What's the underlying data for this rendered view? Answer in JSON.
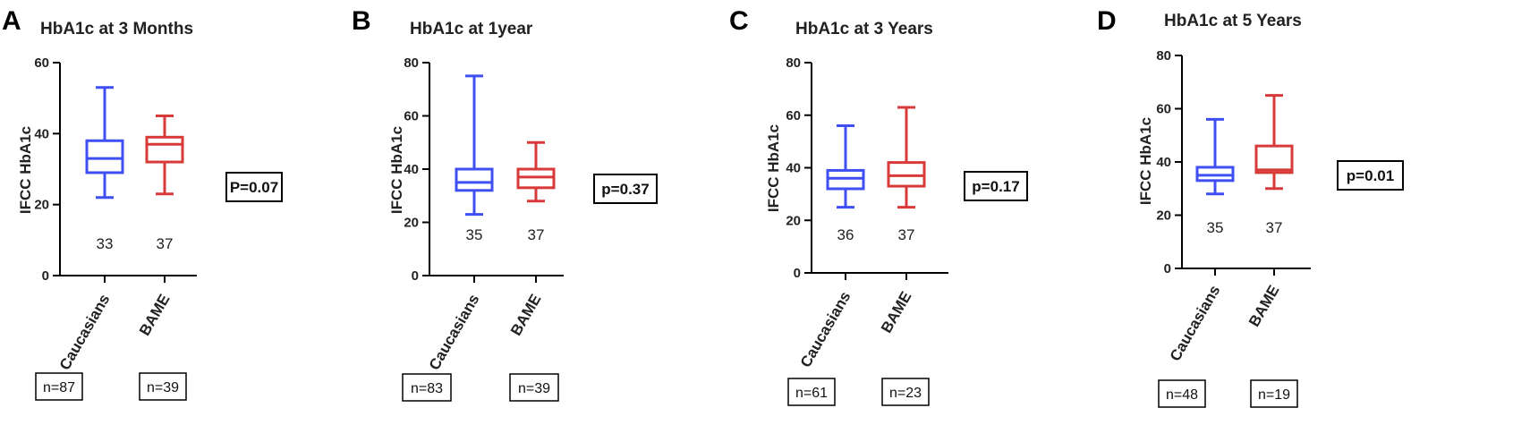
{
  "chart_data": [
    {
      "type": "box",
      "letter": "A",
      "title": "HbA1c at 3 Months",
      "ylabel": "IFCC HbA1c",
      "ylim": [
        0,
        60
      ],
      "yticks": [
        "0",
        "20",
        "40",
        "60"
      ],
      "categories": [
        "Caucasians",
        "BAME"
      ],
      "series": [
        {
          "category": "Caucasians",
          "min": 22,
          "q1": 29,
          "median": 33,
          "q3": 38,
          "max": 53,
          "median_label": "33",
          "n_label": "n=87",
          "color": "#3f4ff2"
        },
        {
          "category": "BAME",
          "min": 23,
          "q1": 32,
          "median": 37,
          "q3": 39,
          "max": 45,
          "median_label": "37",
          "n_label": "n=39",
          "color": "#d83a3a"
        }
      ],
      "p_value": "P=0.07"
    },
    {
      "type": "box",
      "letter": "B",
      "title": "HbA1c at 1year",
      "ylabel": "IFCC HbA1c",
      "ylim": [
        0,
        80
      ],
      "yticks": [
        "0",
        "20",
        "40",
        "60",
        "80"
      ],
      "categories": [
        "Caucasians",
        "BAME"
      ],
      "series": [
        {
          "category": "Caucasians",
          "min": 23,
          "q1": 32,
          "median": 35,
          "q3": 40,
          "max": 75,
          "median_label": "35",
          "n_label": "n=83",
          "color": "#3f4ff2"
        },
        {
          "category": "BAME",
          "min": 28,
          "q1": 33,
          "median": 37,
          "q3": 40,
          "max": 50,
          "median_label": "37",
          "n_label": "n=39",
          "color": "#d83a3a"
        }
      ],
      "p_value": "p=0.37"
    },
    {
      "type": "box",
      "letter": "C",
      "title": "HbA1c at 3 Years",
      "ylabel": "IFCC HbA1c",
      "ylim": [
        0,
        80
      ],
      "yticks": [
        "0",
        "20",
        "40",
        "60",
        "80"
      ],
      "categories": [
        "Caucasians",
        "BAME"
      ],
      "series": [
        {
          "category": "Caucasians",
          "min": 25,
          "q1": 32,
          "median": 36,
          "q3": 39,
          "max": 56,
          "median_label": "36",
          "n_label": "n=61",
          "color": "#3f4ff2"
        },
        {
          "category": "BAME",
          "min": 25,
          "q1": 33,
          "median": 37,
          "q3": 42,
          "max": 63,
          "median_label": "37",
          "n_label": "n=23",
          "color": "#d83a3a"
        }
      ],
      "p_value": "p=0.17"
    },
    {
      "type": "box",
      "letter": "D",
      "title": "HbA1c at 5 Years",
      "ylabel": "IFCC HbA1c",
      "ylim": [
        0,
        80
      ],
      "yticks": [
        "0",
        "20",
        "40",
        "60",
        "80"
      ],
      "categories": [
        "Caucasians",
        "BAME"
      ],
      "series": [
        {
          "category": "Caucasians",
          "min": 28,
          "q1": 33,
          "median": 35,
          "q3": 38,
          "max": 56,
          "median_label": "35",
          "n_label": "n=48",
          "color": "#3f4ff2"
        },
        {
          "category": "BAME",
          "min": 30,
          "q1": 36,
          "median": 37,
          "q3": 46,
          "max": 65,
          "median_label": "37",
          "n_label": "n=19",
          "color": "#d83a3a"
        }
      ],
      "p_value": "p=0.01"
    }
  ]
}
